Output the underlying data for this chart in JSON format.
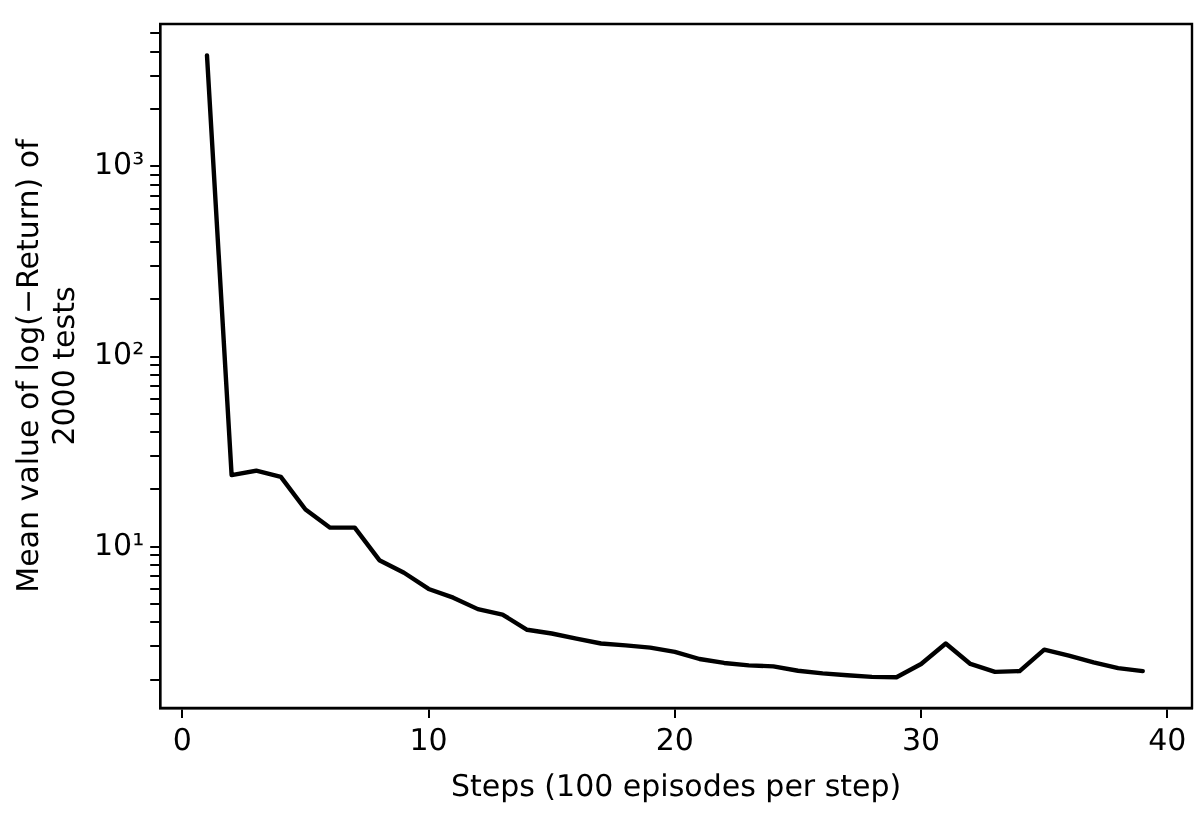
{
  "chart_data": {
    "type": "line",
    "xlabel": "Steps (100 episodes per step)",
    "ylabel": "Mean value of log(−Return) of 2000 tests",
    "x": [
      1,
      2,
      3,
      4,
      5,
      6,
      7,
      8,
      9,
      10,
      11,
      12,
      13,
      14,
      15,
      16,
      17,
      18,
      19,
      20,
      21,
      22,
      23,
      24,
      25,
      26,
      27,
      28,
      29,
      30,
      31,
      32,
      33,
      34,
      35,
      36,
      37,
      38,
      39
    ],
    "series": [
      {
        "color": "#000000",
        "values": [
          3830,
          23.8,
          25.1,
          23.3,
          15.7,
          12.6,
          12.6,
          8.5,
          7.3,
          6.0,
          5.4,
          4.7,
          4.4,
          3.66,
          3.5,
          3.29,
          3.1,
          3.03,
          2.95,
          2.8,
          2.57,
          2.45,
          2.38,
          2.35,
          2.23,
          2.16,
          2.11,
          2.07,
          2.06,
          2.42,
          3.1,
          2.42,
          2.2,
          2.22,
          2.88,
          2.68,
          2.47,
          2.3,
          2.22
        ]
      }
    ],
    "xlim": [
      -0.9,
      41
    ],
    "xticks": [
      0,
      10,
      20,
      30,
      40
    ],
    "ylim": [
      1.42,
      5600
    ],
    "log": "y",
    "yticks": [
      {
        "value": 2,
        "label": null
      },
      {
        "value": 3,
        "label": null
      },
      {
        "value": 4,
        "label": null
      },
      {
        "value": 5,
        "label": null
      },
      {
        "value": 6,
        "label": null
      },
      {
        "value": 7,
        "label": null
      },
      {
        "value": 8,
        "label": null
      },
      {
        "value": 9,
        "label": null
      },
      {
        "value": 10,
        "label": "10¹"
      },
      {
        "value": 20,
        "label": null
      },
      {
        "value": 30,
        "label": null
      },
      {
        "value": 40,
        "label": null
      },
      {
        "value": 50,
        "label": null
      },
      {
        "value": 60,
        "label": null
      },
      {
        "value": 70,
        "label": null
      },
      {
        "value": 80,
        "label": null
      },
      {
        "value": 90,
        "label": null
      },
      {
        "value": 100,
        "label": "10²"
      },
      {
        "value": 200,
        "label": null
      },
      {
        "value": 300,
        "label": null
      },
      {
        "value": 400,
        "label": null
      },
      {
        "value": 500,
        "label": null
      },
      {
        "value": 600,
        "label": null
      },
      {
        "value": 700,
        "label": null
      },
      {
        "value": 800,
        "label": null
      },
      {
        "value": 900,
        "label": null
      },
      {
        "value": 1000,
        "label": "10³"
      },
      {
        "value": 2000,
        "label": null
      },
      {
        "value": 3000,
        "label": null
      },
      {
        "value": 4000,
        "label": null
      },
      {
        "value": 5000,
        "label": null
      }
    ],
    "grid": false,
    "legend": false,
    "marker": "none",
    "line_style": "solid"
  }
}
